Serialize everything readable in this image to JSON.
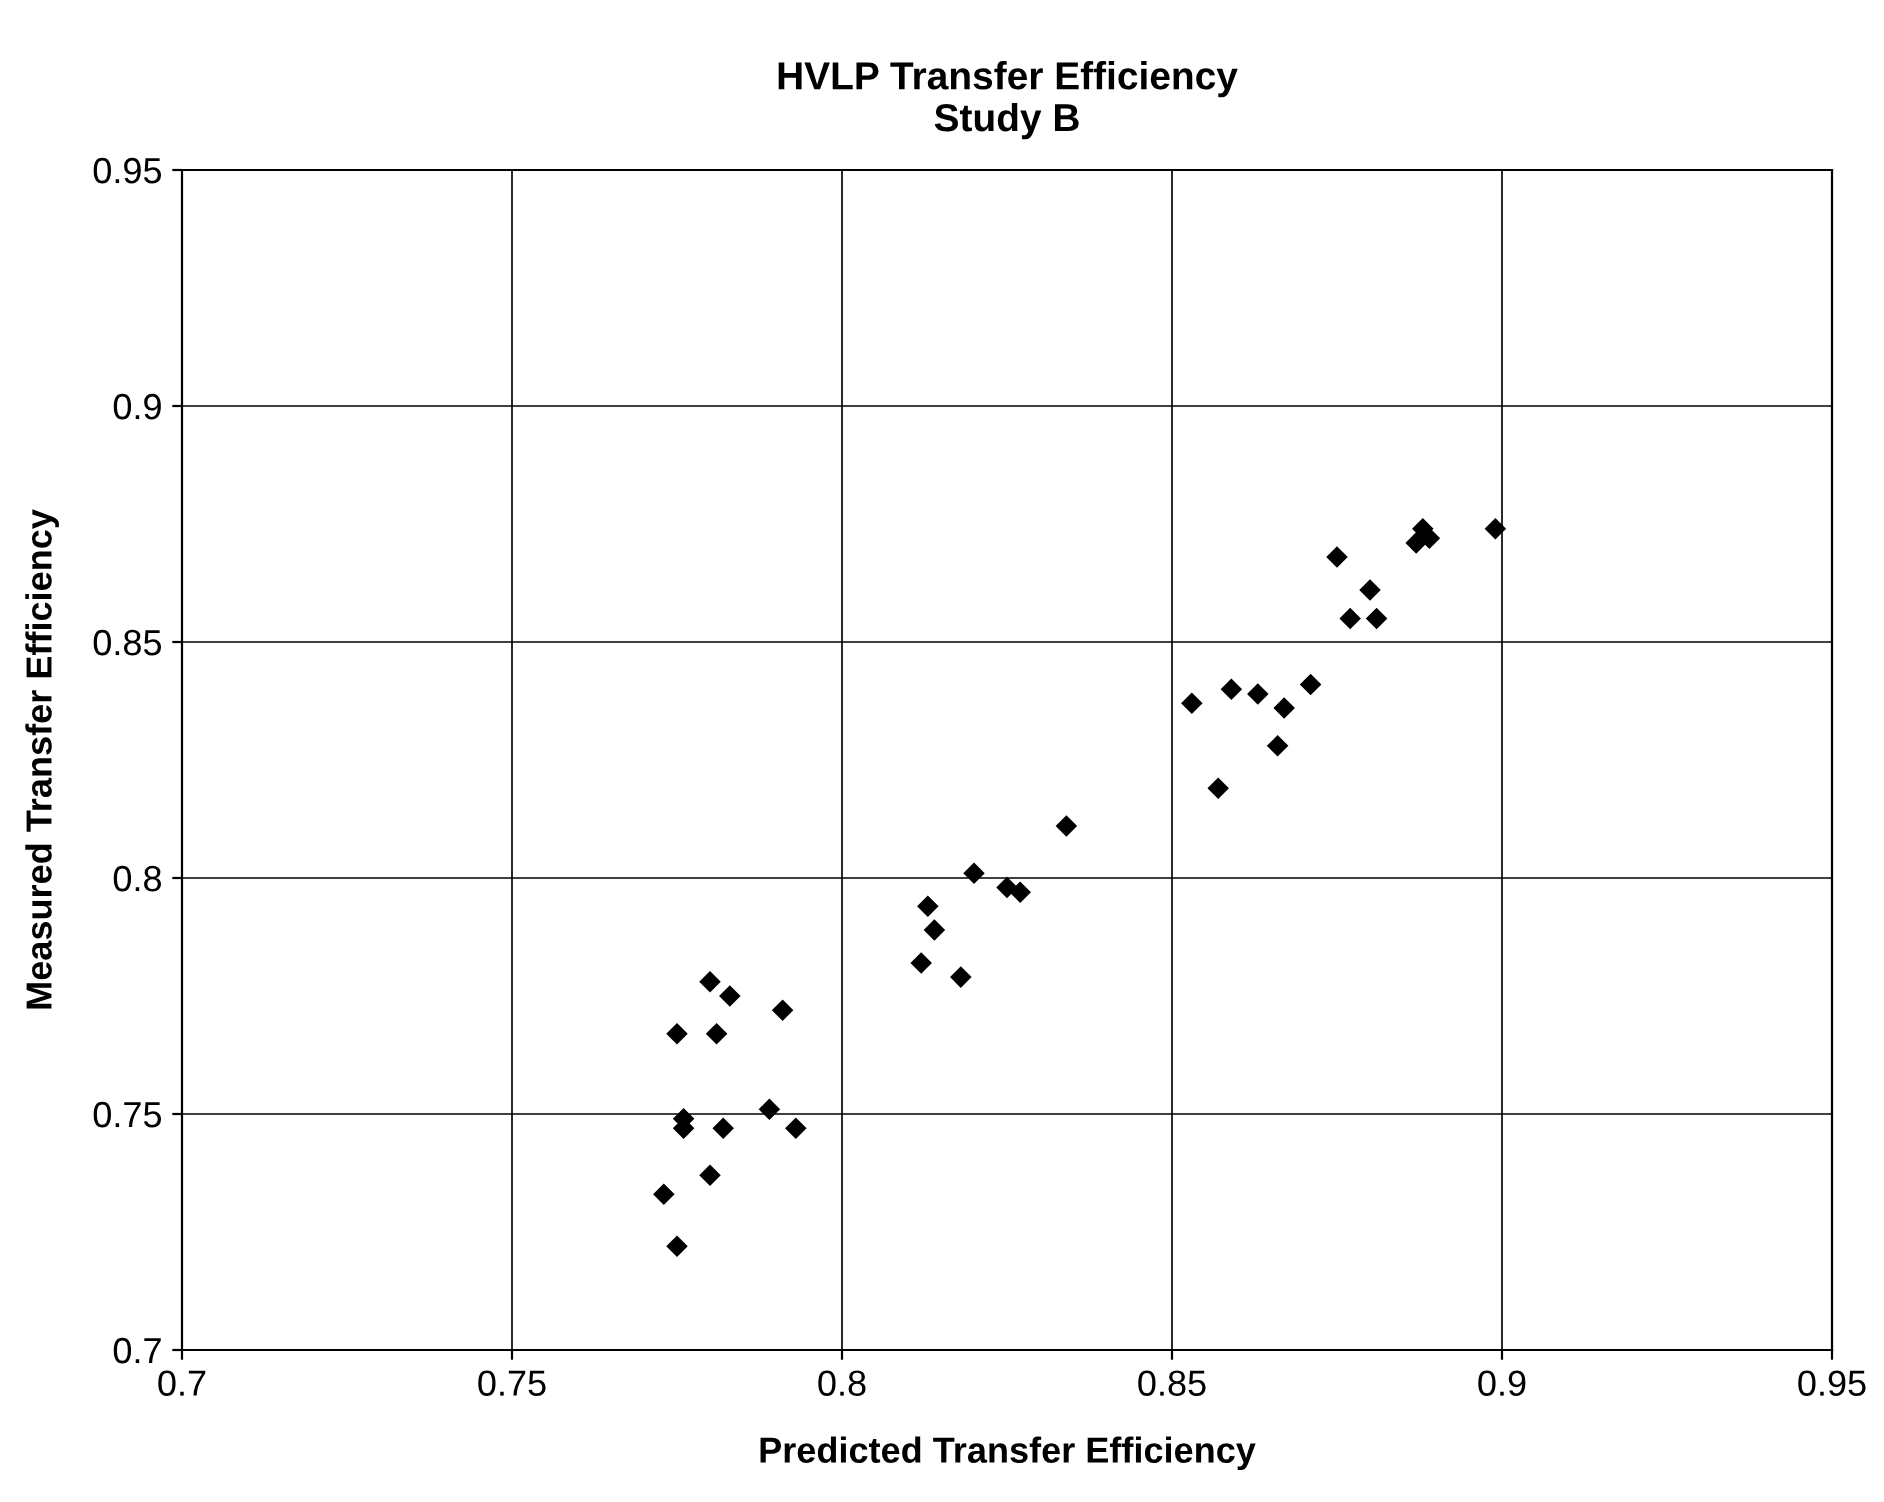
{
  "chart_data": {
    "type": "scatter",
    "title": "HVLP Transfer Efficiency\nStudy B",
    "xlabel": "Predicted Transfer Efficiency",
    "ylabel": "Measured Transfer Efficiency",
    "series": [
      {
        "color": "#000000",
        "x": [
          0.773,
          0.775,
          0.775,
          0.776,
          0.776,
          0.78,
          0.78,
          0.781,
          0.782,
          0.783,
          0.789,
          0.791,
          0.793,
          0.812,
          0.813,
          0.814,
          0.818,
          0.82,
          0.825,
          0.827,
          0.834,
          0.853,
          0.857,
          0.859,
          0.863,
          0.867,
          0.866,
          0.871,
          0.875,
          0.877,
          0.88,
          0.881,
          0.887,
          0.888,
          0.889,
          0.899
        ],
        "values": [
          0.733,
          0.722,
          0.767,
          0.749,
          0.747,
          0.778,
          0.737,
          0.767,
          0.747,
          0.775,
          0.751,
          0.772,
          0.747,
          0.782,
          0.794,
          0.789,
          0.779,
          0.801,
          0.798,
          0.797,
          0.811,
          0.837,
          0.819,
          0.84,
          0.839,
          0.836,
          0.828,
          0.841,
          0.868,
          0.855,
          0.861,
          0.855,
          0.871,
          0.874,
          0.872,
          0.874
        ]
      }
    ],
    "xlim": [
      0.7,
      0.95
    ],
    "ylim": [
      0.7,
      0.95
    ],
    "xticks": [
      0.7,
      0.75,
      0.8,
      0.85,
      0.9,
      0.95
    ],
    "yticks": [
      0.7,
      0.75,
      0.8,
      0.85,
      0.9,
      0.95
    ],
    "grid": true,
    "marker": "diamond"
  }
}
